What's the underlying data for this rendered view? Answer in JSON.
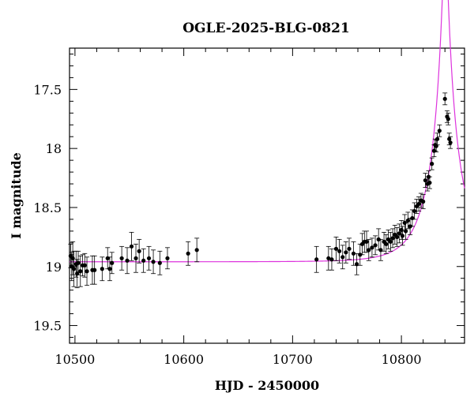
{
  "chart_data": {
    "type": "scatter",
    "title": "OGLE-2025-BLG-0821",
    "xlabel": "HJD - 2450000",
    "ylabel": "I magnitude",
    "xlim": [
      10495,
      10858
    ],
    "ylim": [
      19.65,
      17.15
    ],
    "y_inverted": true,
    "grid": false,
    "legend": "none",
    "x_ticks": [
      "10500",
      "10600",
      "10700",
      "10800"
    ],
    "y_ticks": [
      "17.5",
      "18",
      "18.5",
      "19",
      "19.5"
    ],
    "colors": {
      "points": "#000000",
      "model": "#dd33dd",
      "axes": "#000000"
    },
    "series": [
      {
        "points": [
          [
            10496,
            18.91,
            0.1
          ],
          [
            10497,
            19.0,
            0.12
          ],
          [
            10498,
            18.93,
            0.14
          ],
          [
            10499,
            19.02,
            0.15
          ],
          [
            10501,
            18.98,
            0.11
          ],
          [
            10502,
            19.06,
            0.12
          ],
          [
            10503,
            18.97,
            0.1
          ],
          [
            10505,
            19.04,
            0.13
          ],
          [
            10507,
            18.99,
            0.09
          ],
          [
            10509,
            18.99,
            0.1
          ],
          [
            10511,
            19.04,
            0.12
          ],
          [
            10516,
            19.03,
            0.12
          ],
          [
            10518,
            19.03,
            0.12
          ],
          [
            10525,
            19.02,
            0.1
          ],
          [
            10530,
            18.93,
            0.09
          ],
          [
            10532,
            19.02,
            0.1
          ],
          [
            10534,
            18.97,
            0.09
          ],
          [
            10543,
            18.93,
            0.1
          ],
          [
            10548,
            18.95,
            0.11
          ],
          [
            10552,
            18.83,
            0.12
          ],
          [
            10556,
            18.93,
            0.12
          ],
          [
            10559,
            18.87,
            0.1
          ],
          [
            10563,
            18.95,
            0.1
          ],
          [
            10568,
            18.93,
            0.1
          ],
          [
            10572,
            18.96,
            0.1
          ],
          [
            10578,
            18.97,
            0.1
          ],
          [
            10585,
            18.93,
            0.09
          ],
          [
            10604,
            18.89,
            0.1
          ],
          [
            10612,
            18.86,
            0.1
          ],
          [
            10722,
            18.94,
            0.11
          ],
          [
            10733,
            18.93,
            0.1
          ],
          [
            10736,
            18.94,
            0.09
          ],
          [
            10740,
            18.85,
            0.1
          ],
          [
            10743,
            18.87,
            0.1
          ],
          [
            10746,
            18.92,
            0.1
          ],
          [
            10749,
            18.88,
            0.09
          ],
          [
            10752,
            18.85,
            0.09
          ],
          [
            10756,
            18.89,
            0.1
          ],
          [
            10759,
            18.98,
            0.09
          ],
          [
            10762,
            18.9,
            0.09
          ],
          [
            10764,
            18.81,
            0.09
          ],
          [
            10766,
            18.79,
            0.09
          ],
          [
            10768,
            18.79,
            0.09
          ],
          [
            10770,
            18.86,
            0.09
          ],
          [
            10773,
            18.84,
            0.08
          ],
          [
            10776,
            18.82,
            0.08
          ],
          [
            10779,
            18.77,
            0.09
          ],
          [
            10781,
            18.86,
            0.09
          ],
          [
            10784,
            18.79,
            0.08
          ],
          [
            10786,
            18.81,
            0.08
          ],
          [
            10788,
            18.77,
            0.08
          ],
          [
            10790,
            18.79,
            0.08
          ],
          [
            10792,
            18.76,
            0.08
          ],
          [
            10794,
            18.73,
            0.08
          ],
          [
            10796,
            18.75,
            0.08
          ],
          [
            10798,
            18.72,
            0.08
          ],
          [
            10800,
            18.69,
            0.08
          ],
          [
            10801,
            18.74,
            0.08
          ],
          [
            10803,
            18.63,
            0.07
          ],
          [
            10804,
            18.7,
            0.07
          ],
          [
            10806,
            18.61,
            0.07
          ],
          [
            10808,
            18.66,
            0.07
          ],
          [
            10810,
            18.59,
            0.07
          ],
          [
            10812,
            18.53,
            0.07
          ],
          [
            10814,
            18.49,
            0.06
          ],
          [
            10816,
            18.47,
            0.06
          ],
          [
            10818,
            18.44,
            0.06
          ],
          [
            10820,
            18.45,
            0.06
          ],
          [
            10822,
            18.27,
            0.06
          ],
          [
            10824,
            18.3,
            0.06
          ],
          [
            10825,
            18.24,
            0.05
          ],
          [
            10826,
            18.29,
            0.05
          ],
          [
            10828,
            18.13,
            0.05
          ],
          [
            10830,
            18.02,
            0.05
          ],
          [
            10831,
            17.97,
            0.05
          ],
          [
            10832,
            17.98,
            0.05
          ],
          [
            10833,
            17.92,
            0.05
          ],
          [
            10835,
            17.85,
            0.05
          ],
          [
            10840,
            17.58,
            0.05
          ],
          [
            10842,
            17.73,
            0.05
          ],
          [
            10843,
            17.75,
            0.05
          ],
          [
            10844,
            17.92,
            0.05
          ],
          [
            10845,
            17.95,
            0.05
          ]
        ]
      }
    ],
    "model": {
      "t0": 10840.3,
      "u0": 0.083,
      "tE": 27.5,
      "baseline_mag": 18.96,
      "x_range": [
        10495,
        10858
      ]
    }
  }
}
